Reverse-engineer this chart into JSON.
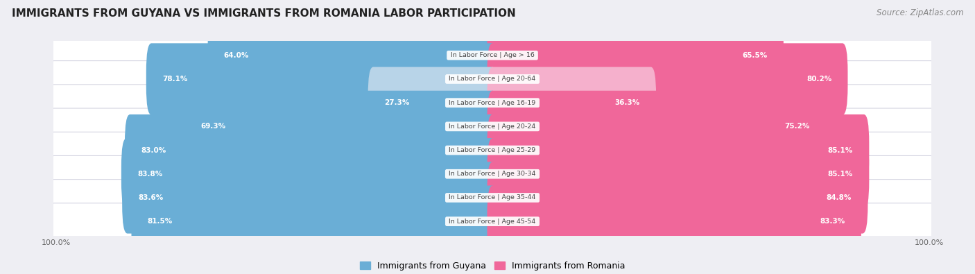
{
  "title": "IMMIGRANTS FROM GUYANA VS IMMIGRANTS FROM ROMANIA LABOR PARTICIPATION",
  "source": "Source: ZipAtlas.com",
  "categories": [
    "In Labor Force | Age > 16",
    "In Labor Force | Age 20-64",
    "In Labor Force | Age 16-19",
    "In Labor Force | Age 20-24",
    "In Labor Force | Age 25-29",
    "In Labor Force | Age 30-34",
    "In Labor Force | Age 35-44",
    "In Labor Force | Age 45-54"
  ],
  "guyana_values": [
    64.0,
    78.1,
    27.3,
    69.3,
    83.0,
    83.8,
    83.6,
    81.5
  ],
  "romania_values": [
    65.5,
    80.2,
    36.3,
    75.2,
    85.1,
    85.1,
    84.8,
    83.3
  ],
  "guyana_color": "#6aaed6",
  "guyana_color_light": "#b8d4e8",
  "romania_color": "#f0679a",
  "romania_color_light": "#f5b0cc",
  "bg_color": "#eeeef3",
  "row_bg_color": "#f8f8fc",
  "title_color": "#222222",
  "source_color": "#888888",
  "axis_label_color": "#666666",
  "max_val": 100.0,
  "bar_height": 0.62,
  "legend_label_guyana": "Immigrants from Guyana",
  "legend_label_romania": "Immigrants from Romania",
  "center_label_color": "#444444",
  "value_label_color_inside": "#ffffff",
  "value_label_color_outside": "#666666"
}
